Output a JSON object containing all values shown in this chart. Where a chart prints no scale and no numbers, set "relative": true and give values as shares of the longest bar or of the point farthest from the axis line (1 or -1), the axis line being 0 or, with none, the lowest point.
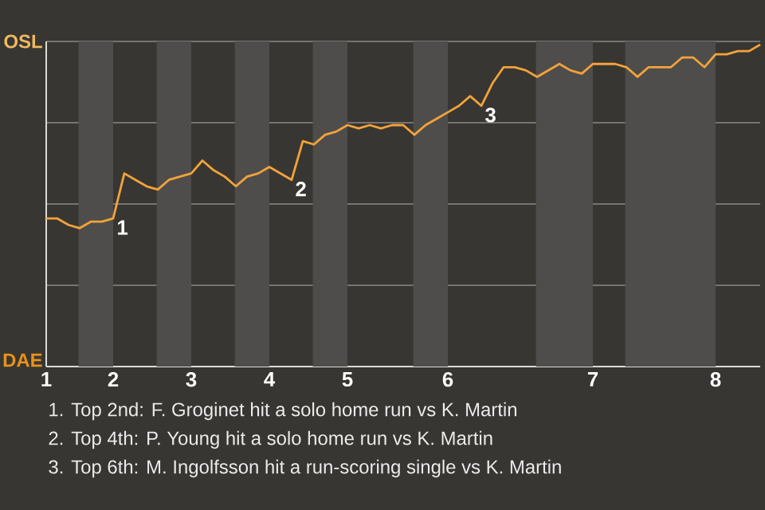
{
  "chart_data": {
    "type": "line",
    "color": "#f2a33a",
    "relative": true,
    "categories": [
      "1",
      null,
      null,
      null,
      null,
      null,
      "2",
      null,
      null,
      null,
      null,
      null,
      null,
      "3",
      null,
      null,
      null,
      null,
      null,
      null,
      "4",
      null,
      null,
      null,
      null,
      null,
      null,
      "5",
      null,
      null,
      null,
      null,
      null,
      null,
      null,
      null,
      "6",
      null,
      null,
      null,
      null,
      null,
      null,
      null,
      null,
      null,
      null,
      null,
      null,
      "7",
      null,
      null,
      null,
      null,
      null,
      null,
      null,
      null,
      null,
      null,
      "8",
      null,
      null,
      null,
      null
    ],
    "values": [
      0.46,
      0.46,
      0.44,
      0.43,
      0.45,
      0.45,
      0.46,
      0.6,
      0.58,
      0.56,
      0.55,
      0.58,
      0.59,
      0.6,
      0.64,
      0.61,
      0.59,
      0.56,
      0.59,
      0.6,
      0.62,
      0.6,
      0.58,
      0.7,
      0.69,
      0.72,
      0.73,
      0.75,
      0.74,
      0.75,
      0.74,
      0.75,
      0.75,
      0.72,
      0.75,
      0.77,
      0.79,
      0.81,
      0.84,
      0.81,
      0.88,
      0.93,
      0.93,
      0.92,
      0.9,
      0.92,
      0.94,
      0.92,
      0.91,
      0.94,
      0.94,
      0.94,
      0.93,
      0.9,
      0.93,
      0.93,
      0.93,
      0.96,
      0.96,
      0.93,
      0.97,
      0.97,
      0.98,
      0.98,
      1
    ],
    "grid": "y",
    "annotations": [
      "OSL",
      "DAE",
      {
        "text": "1",
        "x": "2",
        "y": 0.46
      },
      {
        "text": "2",
        "y": 0.58
      },
      {
        "text": "3",
        "y": 0.81
      },
      "1. Top 2nd: F. Groginet hit a solo home run vs K. Martin",
      "2. Top 4th: P. Young hit a solo home run vs K. Martin",
      "3. Top 6th: M. Ingolfsson hit a run-scoring single vs K. Martin"
    ]
  }
}
